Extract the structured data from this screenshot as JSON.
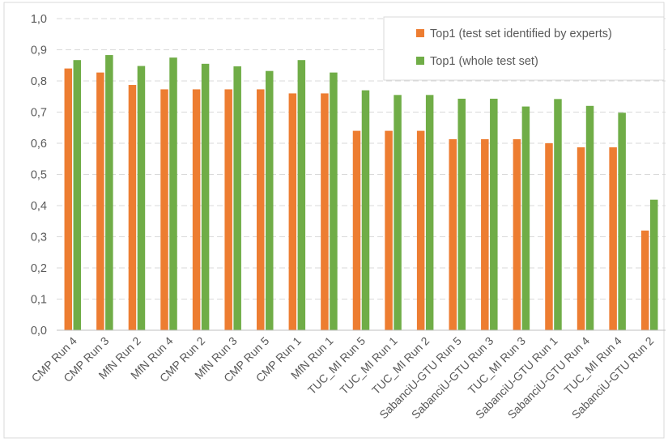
{
  "chart_data": {
    "type": "bar",
    "title": "",
    "xlabel": "",
    "ylabel": "",
    "ylim": [
      0,
      1.0
    ],
    "yticks": [
      "0,0",
      "0,1",
      "0,2",
      "0,3",
      "0,4",
      "0,5",
      "0,6",
      "0,7",
      "0,8",
      "0,9",
      "1,0"
    ],
    "grid": true,
    "legend_position": "top-right",
    "categories": [
      "CMP Run 4",
      "CMP Run 3",
      "MfN Run 2",
      "MfN Run 4",
      "CMP Run 2",
      "MfN Run 3",
      "CMP Run 5",
      "CMP Run 1",
      "MfN Run 1",
      "TUC_MI Run 5",
      "TUC_MI Run 1",
      "TUC_MI Run 2",
      "SabanciU-GTU Run 5",
      "SabanciU-GTU Run 3",
      "TUC_MI Run 3",
      "SabanciU-GTU Run 1",
      "SabanciU-GTU Run 4",
      "TUC_MI Run 4",
      "SabanciU-GTU Run 2"
    ],
    "series": [
      {
        "name": "Top1 (test set identified by experts)",
        "color": "#ED7D31",
        "values": [
          0.84,
          0.827,
          0.787,
          0.773,
          0.773,
          0.773,
          0.773,
          0.76,
          0.76,
          0.64,
          0.64,
          0.64,
          0.613,
          0.613,
          0.613,
          0.6,
          0.587,
          0.587,
          0.32
        ]
      },
      {
        "name": "Top1 (whole test set)",
        "color": "#70AD47",
        "values": [
          0.867,
          0.883,
          0.848,
          0.875,
          0.855,
          0.847,
          0.832,
          0.867,
          0.827,
          0.77,
          0.755,
          0.755,
          0.743,
          0.743,
          0.718,
          0.742,
          0.72,
          0.698,
          0.419
        ]
      }
    ]
  }
}
